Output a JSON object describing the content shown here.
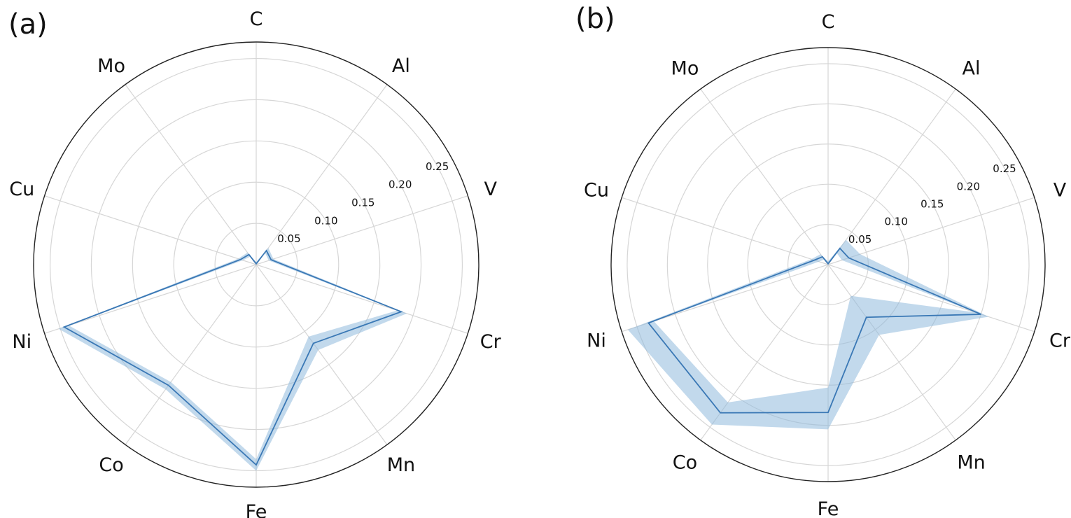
{
  "colors": {
    "line": "#3a78b5",
    "band": "#8fb9dd",
    "grid": "#d6d6d6",
    "outer": "#222222"
  },
  "chart_data": [
    {
      "type": "radar",
      "panel_label": "(a)",
      "categories": [
        "C",
        "Al",
        "V",
        "Cr",
        "Mn",
        "Fe",
        "Co",
        "Ni",
        "Cu",
        "Mo"
      ],
      "rlim": [
        0,
        0.27
      ],
      "r_ticks": [
        0.05,
        0.1,
        0.15,
        0.2,
        0.25
      ],
      "r_tick_labels": [
        "0.05",
        "0.10",
        "0.15",
        "0.20",
        "0.25"
      ],
      "grid": true,
      "series": [
        {
          "values": [
            0.001,
            0.021,
            0.019,
            0.185,
            0.118,
            0.243,
            0.181,
            0.245,
            0.02,
            0.015
          ],
          "lower": [
            0.0,
            0.018,
            0.016,
            0.18,
            0.108,
            0.236,
            0.176,
            0.239,
            0.017,
            0.012
          ],
          "upper": [
            0.003,
            0.025,
            0.022,
            0.192,
            0.128,
            0.25,
            0.187,
            0.252,
            0.023,
            0.018
          ]
        }
      ]
    },
    {
      "type": "radar",
      "panel_label": "(b)",
      "categories": [
        "C",
        "Al",
        "V",
        "Cr",
        "Mn",
        "Fe",
        "Co",
        "Ni",
        "Cu",
        "Mo"
      ],
      "rlim": [
        0,
        0.27
      ],
      "r_ticks": [
        0.05,
        0.1,
        0.15,
        0.2,
        0.25
      ],
      "r_tick_labels": [
        "0.05",
        "0.10",
        "0.15",
        "0.20",
        "0.25"
      ],
      "grid": true,
      "series": [
        {
          "values": [
            0.001,
            0.025,
            0.027,
            0.2,
            0.081,
            0.184,
            0.228,
            0.235,
            0.018,
            0.012
          ],
          "lower": [
            0.0,
            0.018,
            0.018,
            0.192,
            0.048,
            0.153,
            0.212,
            0.228,
            0.012,
            0.008
          ],
          "upper": [
            0.004,
            0.038,
            0.042,
            0.21,
            0.108,
            0.205,
            0.246,
            0.262,
            0.022,
            0.016
          ]
        }
      ]
    }
  ]
}
